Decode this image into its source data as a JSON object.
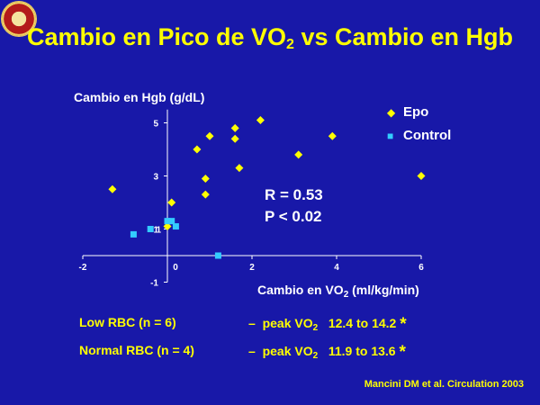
{
  "title": {
    "main": "Cambio en Pico de VO",
    "sub": "2",
    "rest": " vs Cambio en Hgb"
  },
  "chart_data": {
    "type": "scatter",
    "ylabel": "Cambio en Hgb (g/dL)",
    "xlabel": {
      "main": "Cambio en VO",
      "sub": "2",
      "rest": " (ml/kg/min)"
    },
    "xlim": [
      -2,
      6
    ],
    "ylim": [
      -1,
      5.5
    ],
    "x_ticks": [
      "-2",
      "0",
      "2",
      "4",
      "6"
    ],
    "y_ticks": [
      "-1",
      "1",
      "3",
      "5"
    ],
    "series": [
      {
        "name": "Epo",
        "marker": "diamond",
        "color": "#ffff00",
        "points": [
          [
            -1.3,
            2.5
          ],
          [
            0.7,
            4.0
          ],
          [
            1.0,
            4.5
          ],
          [
            1.6,
            4.4
          ],
          [
            1.6,
            4.8
          ],
          [
            2.2,
            5.1
          ],
          [
            3.1,
            3.8
          ],
          [
            3.9,
            4.5
          ],
          [
            6.0,
            3.0
          ],
          [
            1.7,
            3.3
          ],
          [
            0.9,
            2.9
          ],
          [
            0.9,
            2.3
          ],
          [
            0.1,
            2.0
          ],
          [
            0.0,
            1.1
          ]
        ]
      },
      {
        "name": "Control",
        "marker": "square",
        "color": "#33ccff",
        "points": [
          [
            -0.8,
            0.8
          ],
          [
            -0.4,
            1.0
          ],
          [
            0.0,
            1.3
          ],
          [
            0.1,
            1.3
          ],
          [
            0.2,
            1.1
          ],
          [
            1.2,
            0.0
          ]
        ]
      }
    ],
    "stats": {
      "r": "R = 0.53",
      "p": "P < 0.02"
    },
    "y_extra_label": "1"
  },
  "legend": {
    "epo_marker": "◆",
    "epo_label": "Epo",
    "control_marker": "■",
    "control_label": "Control"
  },
  "notes": [
    {
      "group": "Low RBC (n = 6)",
      "dash": "–",
      "measure": "peak VO",
      "sub": "2",
      "range": "12.4 to 14.2",
      "star": "*"
    },
    {
      "group": "Normal RBC (n = 4)",
      "dash": "–",
      "measure": "peak VO",
      "sub": "2",
      "range": "11.9 to 13.6",
      "star": "*"
    }
  ],
  "citation": "Mancini DM et al. Circulation 2003",
  "colors": {
    "background": "#1818a8",
    "accent": "#ffff00",
    "control": "#33ccff",
    "text": "#ffffff"
  }
}
